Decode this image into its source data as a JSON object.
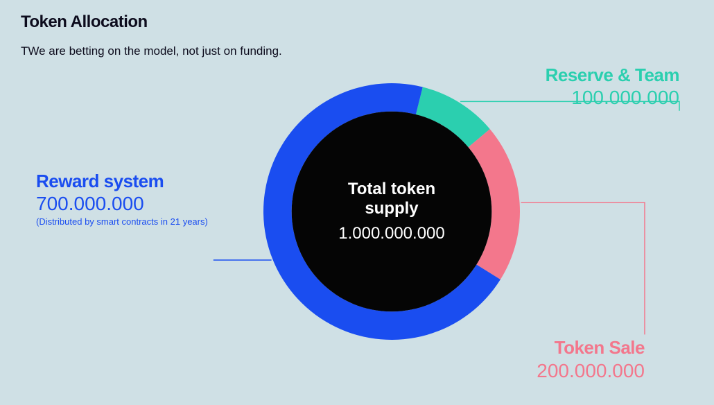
{
  "title": "Token Allocation",
  "subtitle": "TWe are betting on the model, not just on funding.",
  "background_color": "#cfe0e5",
  "chart": {
    "type": "donut",
    "outer_radius": 185,
    "inner_radius_ratio": 0.78,
    "center_fill": "#050505",
    "center_title": "Total token\nsupply",
    "center_value": "1.000.000.000",
    "center_text_color": "#ffffff",
    "center_title_fontsize": 24,
    "center_value_fontsize": 24,
    "start_angle_deg": 14,
    "slices": [
      {
        "key": "reserve",
        "label": "Reserve & Team",
        "value_text": "100.000.000",
        "value": 100000000,
        "color": "#2bcfaf"
      },
      {
        "key": "sale",
        "label": "Token Sale",
        "value_text": "200.000.000",
        "value": 200000000,
        "color": "#f3778c"
      },
      {
        "key": "reward",
        "label": "Reward system",
        "value_text": "700.000.000",
        "value": 700000000,
        "color": "#1a4df0",
        "note": "(Distributed by smart contracts in 21 years)"
      }
    ],
    "total": 1000000000
  },
  "connectors": {
    "reserve": {
      "color": "#2bcfaf"
    },
    "sale": {
      "color": "#f3778c"
    },
    "reward": {
      "color": "#1a4df0"
    }
  },
  "typography": {
    "title_fontsize": 24,
    "title_weight": 800,
    "subtitle_fontsize": 17,
    "callout_label_fontsize": 26,
    "callout_value_fontsize": 28,
    "callout_note_fontsize": 13
  }
}
